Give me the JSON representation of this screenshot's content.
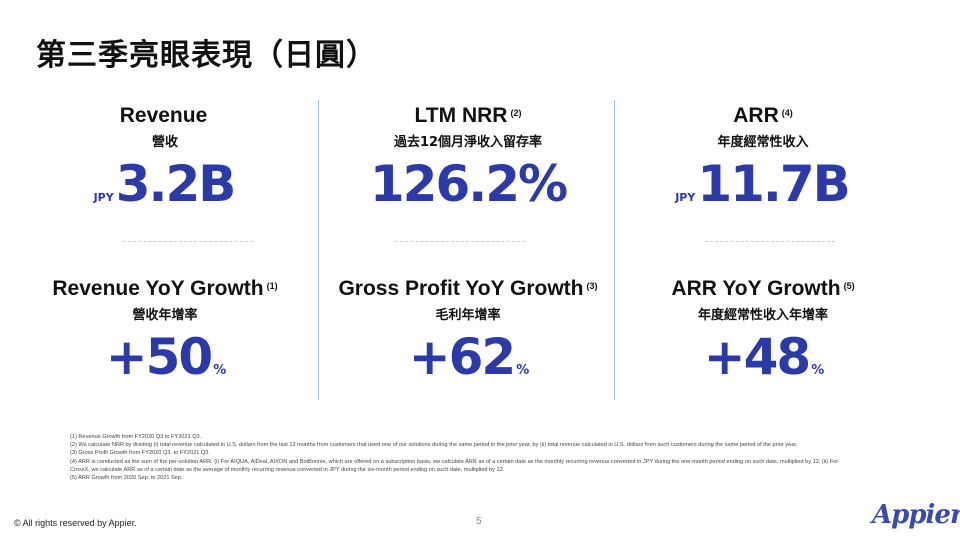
{
  "title": "第三季亮眼表現（日圓）",
  "accent_color": "#2b3aa6",
  "metrics": [
    {
      "title": "Revenue",
      "note": "",
      "subtitle": "營收",
      "prefix": "JPY",
      "value": "3.2B",
      "suffix": ""
    },
    {
      "title": "LTM NRR",
      "note": "(2)",
      "subtitle": "過去12個月淨收入留存率",
      "prefix": "",
      "value": "126.2%",
      "suffix": ""
    },
    {
      "title": "ARR",
      "note": "(4)",
      "subtitle": "年度經常性收入",
      "prefix": "JPY",
      "value": "11.7B",
      "suffix": ""
    },
    {
      "title": "Revenue YoY Growth",
      "note": "(1)",
      "subtitle": "營收年增率",
      "prefix": "",
      "value": "+50",
      "suffix": "%"
    },
    {
      "title": "Gross Profit YoY Growth",
      "note": "(3)",
      "subtitle": "毛利年增率",
      "prefix": "",
      "value": "+62",
      "suffix": "%"
    },
    {
      "title": "ARR YoY Growth",
      "note": "(5)",
      "subtitle": "年度經常性收入年增率",
      "prefix": "",
      "value": "+48",
      "suffix": "%"
    }
  ],
  "footnotes": [
    "(1) Revenue Growth from FY2020 Q3 to FY2021 Q3.",
    "(2) We calculate NRR by dividing (i) total revenue calculated in U.S. dollars from the last 12 months from customers that used one of our solutions during the same period in the prior year, by (ii) total revenue calculated in U.S. dollars from such customers during the same period of the prior year.",
    "(3) Gross Profit Growth from FY2020 Q3. to FY2021 Q3.",
    "(4) ARR is conducted as the sum of the per-solution ARR. (i) For AIQUA, AiDeal, AIXON and BotBonnie, which are offered on a subscription basis, we calculate ARR as of a certain date as the monthly recurring revenue converted in JPY during the one-month period ending on such date, multiplied by 12. (ii) For CrossX, we calculate ARR as of a certain date as the average of monthly recurring revenue converted in JPY during the six-month period ending on such date, multiplied by 12.",
    "(5) ARR Growth from 2020 Sep. to 2021 Sep."
  ],
  "footer": {
    "copyright": "© All rights reserved by Appier.",
    "page": "5",
    "logo": "Appier"
  }
}
